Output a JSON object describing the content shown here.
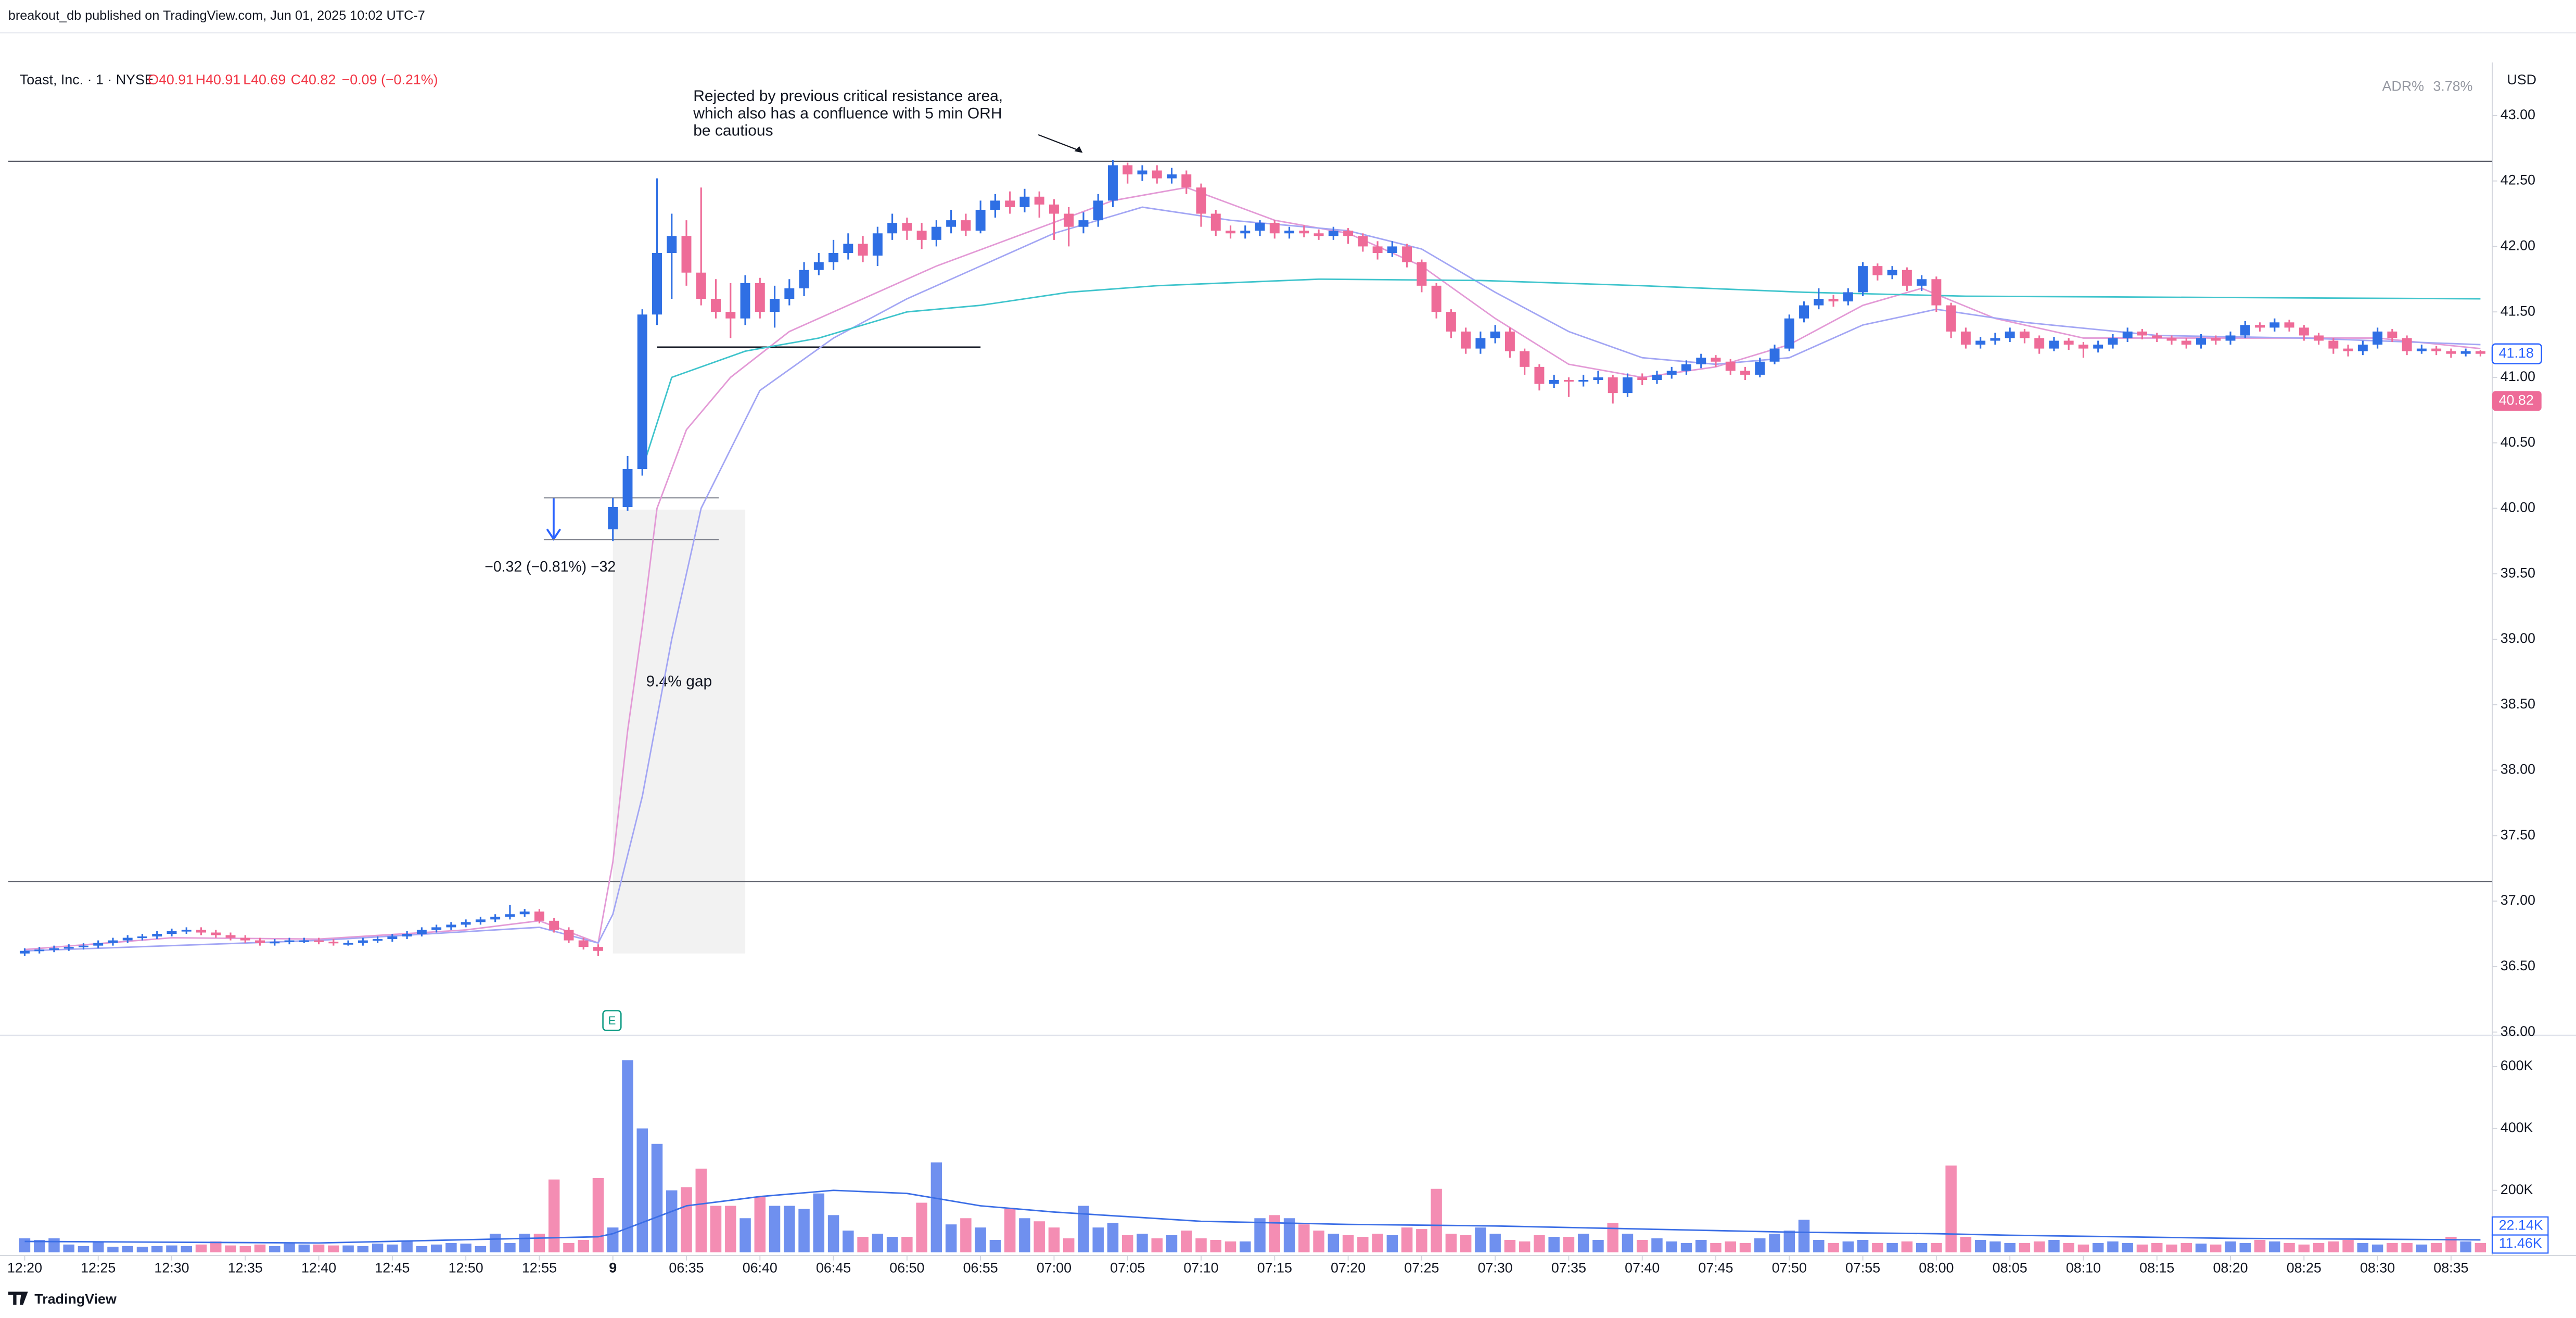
{
  "chart_data": {
    "type": "candlestick",
    "publisher": "breakout_db published on TradingView.com, Jun 01, 2025 10:02 UTC-7",
    "title": "Toast, Inc. · 1 · NYSE",
    "legend_values": [
      {
        "value": 40.91,
        "label": "O40.91"
      },
      {
        "value": 40.91,
        "label": "H40.91"
      },
      {
        "value": 40.69,
        "label": "L40.69"
      },
      {
        "value": 40.82,
        "label": "C40.82"
      }
    ],
    "change": {
      "value": -0.09,
      "label": "−0.09 (−0.21%)"
    },
    "adr_label": "ADR%",
    "adr": {
      "value": 3.78,
      "label": "3.78%"
    },
    "currency": "USD",
    "brand": "TradingView",
    "annotation_lines": [
      "Rejected by previous critical resistance area,",
      "which also has a confluence with 5 min ORH",
      "be cautious"
    ],
    "gap_label": "9.4% gap",
    "measure_label": "−0.32 (−0.81%) −32",
    "earnings_marker": "E",
    "up_color": "#2f6fe4",
    "down_color": "#ee6b98",
    "vol_up_color": "#6f90ef",
    "vol_down_color": "#f48db3",
    "xlim": [
      -1.12,
      167.8
    ],
    "ylim": [
      36,
      43.38
    ],
    "yticks": [
      {
        "value": 36,
        "label": "36.00"
      },
      {
        "value": 36.5,
        "label": "36.50"
      },
      {
        "value": 37,
        "label": "37.00"
      },
      {
        "value": 37.5,
        "label": "37.50"
      },
      {
        "value": 38,
        "label": "38.00"
      },
      {
        "value": 38.5,
        "label": "38.50"
      },
      {
        "value": 39,
        "label": "39.00"
      },
      {
        "value": 39.5,
        "label": "39.50"
      },
      {
        "value": 40,
        "label": "40.00"
      },
      {
        "value": 40.5,
        "label": "40.50"
      },
      {
        "value": 41,
        "label": "41.00"
      },
      {
        "value": 41.5,
        "label": "41.50"
      },
      {
        "value": 42,
        "label": "42.00"
      },
      {
        "value": 42.5,
        "label": "42.50"
      },
      {
        "value": 43,
        "label": "43.00"
      }
    ],
    "vlim": [
      0,
      690000
    ],
    "vticks": [
      {
        "value": 200000,
        "label": "200K"
      },
      {
        "value": 400000,
        "label": "400K"
      },
      {
        "value": 600000,
        "label": "600K"
      }
    ],
    "xticks": [
      {
        "value": 0,
        "label": "12:20"
      },
      {
        "value": 5,
        "label": "12:25"
      },
      {
        "value": 10,
        "label": "12:30"
      },
      {
        "value": 15,
        "label": "12:35"
      },
      {
        "value": 20,
        "label": "12:40"
      },
      {
        "value": 25,
        "label": "12:45"
      },
      {
        "value": 30,
        "label": "12:50"
      },
      {
        "value": 35,
        "label": "12:55"
      },
      {
        "value": 40,
        "label": "9"
      },
      {
        "value": 45,
        "label": "06:35"
      },
      {
        "value": 50,
        "label": "06:40"
      },
      {
        "value": 55,
        "label": "06:45"
      },
      {
        "value": 60,
        "label": "06:50"
      },
      {
        "value": 65,
        "label": "06:55"
      },
      {
        "value": 70,
        "label": "07:00"
      },
      {
        "value": 75,
        "label": "07:05"
      },
      {
        "value": 80,
        "label": "07:10"
      },
      {
        "value": 85,
        "label": "07:15"
      },
      {
        "value": 90,
        "label": "07:20"
      },
      {
        "value": 95,
        "label": "07:25"
      },
      {
        "value": 100,
        "label": "07:30"
      },
      {
        "value": 105,
        "label": "07:35"
      },
      {
        "value": 110,
        "label": "07:40"
      },
      {
        "value": 115,
        "label": "07:45"
      },
      {
        "value": 120,
        "label": "07:50"
      },
      {
        "value": 125,
        "label": "07:55"
      },
      {
        "value": 130,
        "label": "08:00"
      },
      {
        "value": 135,
        "label": "08:05"
      },
      {
        "value": 140,
        "label": "08:10"
      },
      {
        "value": 145,
        "label": "08:15"
      },
      {
        "value": 150,
        "label": "08:20"
      },
      {
        "value": 155,
        "label": "08:25"
      },
      {
        "value": 160,
        "label": "08:30"
      },
      {
        "value": 165,
        "label": "08:35"
      }
    ],
    "open": [
      36.6,
      36.62,
      36.63,
      36.64,
      36.65,
      36.66,
      36.68,
      36.7,
      36.72,
      36.73,
      36.75,
      36.77,
      36.78,
      36.76,
      36.74,
      36.72,
      36.7,
      36.68,
      36.69,
      36.7,
      36.7,
      36.69,
      36.68,
      36.68,
      36.7,
      36.71,
      36.73,
      36.75,
      36.78,
      36.8,
      36.82,
      36.84,
      36.86,
      36.88,
      36.9,
      36.92,
      36.85,
      36.78,
      36.7,
      36.65,
      39.84,
      40.01,
      40.3,
      41.48,
      41.95,
      42.08,
      41.8,
      41.6,
      41.5,
      41.45,
      41.72,
      41.5,
      41.6,
      41.68,
      41.82,
      41.88,
      41.95,
      42.02,
      41.93,
      42.1,
      42.18,
      42.12,
      42.05,
      42.15,
      42.2,
      42.12,
      42.28,
      42.35,
      42.3,
      42.38,
      42.32,
      42.25,
      42.15,
      42.2,
      42.35,
      42.62,
      42.55,
      42.58,
      42.52,
      42.55,
      42.45,
      42.25,
      42.12,
      42.1,
      42.12,
      42.18,
      42.1,
      42.12,
      42.1,
      42.08,
      42.12,
      42.08,
      42.0,
      41.95,
      42.0,
      41.88,
      41.7,
      41.5,
      41.35,
      41.22,
      41.3,
      41.35,
      41.2,
      41.08,
      40.95,
      40.98,
      40.97,
      40.98,
      41.0,
      40.88,
      41.0,
      40.98,
      41.02,
      41.05,
      41.1,
      41.15,
      41.12,
      41.05,
      41.02,
      41.12,
      41.22,
      41.45,
      41.55,
      41.6,
      41.58,
      41.65,
      41.85,
      41.78,
      41.82,
      41.7,
      41.75,
      41.55,
      41.35,
      41.25,
      41.28,
      41.3,
      41.35,
      41.3,
      41.22,
      41.28,
      41.25,
      41.22,
      41.25,
      41.3,
      41.35,
      41.32,
      41.3,
      41.28,
      41.25,
      41.3,
      41.28,
      41.32,
      41.4,
      41.38,
      41.42,
      41.38,
      41.32,
      41.28,
      41.22,
      41.2,
      41.25,
      41.35,
      41.3,
      41.2,
      41.22,
      41.2,
      41.18,
      41.2
    ],
    "high": [
      36.64,
      36.65,
      36.66,
      36.67,
      36.68,
      36.7,
      36.72,
      36.74,
      36.75,
      36.77,
      36.79,
      36.8,
      36.8,
      36.78,
      36.76,
      36.74,
      36.72,
      36.71,
      36.72,
      36.72,
      36.72,
      36.71,
      36.7,
      36.72,
      36.73,
      36.75,
      36.77,
      36.8,
      36.82,
      36.84,
      36.86,
      36.88,
      36.9,
      36.97,
      36.94,
      36.94,
      36.87,
      36.8,
      36.72,
      36.67,
      40.08,
      40.4,
      41.52,
      42.52,
      42.25,
      42.2,
      42.45,
      41.75,
      41.72,
      41.78,
      41.76,
      41.7,
      41.75,
      41.88,
      41.95,
      42.05,
      42.1,
      42.08,
      42.15,
      42.25,
      42.22,
      42.18,
      42.2,
      42.28,
      42.25,
      42.35,
      42.4,
      42.42,
      42.44,
      42.42,
      42.36,
      42.3,
      42.26,
      42.4,
      42.66,
      42.64,
      42.62,
      42.62,
      42.6,
      42.58,
      42.48,
      42.28,
      42.16,
      42.16,
      42.2,
      42.2,
      42.15,
      42.16,
      42.13,
      42.15,
      42.14,
      42.1,
      42.04,
      42.04,
      42.02,
      41.9,
      41.72,
      41.52,
      41.38,
      41.35,
      41.4,
      41.38,
      41.22,
      41.1,
      41.02,
      41.0,
      41.02,
      41.05,
      41.02,
      41.03,
      41.03,
      41.05,
      41.08,
      41.13,
      41.18,
      41.17,
      41.14,
      41.08,
      41.15,
      41.25,
      41.48,
      41.58,
      41.68,
      41.63,
      41.68,
      41.88,
      41.87,
      41.85,
      41.84,
      41.78,
      41.77,
      41.57,
      41.38,
      41.31,
      41.34,
      41.38,
      41.37,
      41.32,
      41.31,
      41.3,
      41.27,
      41.28,
      41.33,
      41.38,
      41.37,
      41.34,
      41.32,
      41.3,
      41.33,
      41.32,
      41.35,
      41.43,
      41.42,
      41.45,
      41.44,
      41.4,
      41.34,
      41.3,
      41.25,
      41.28,
      41.38,
      41.37,
      41.32,
      41.25,
      41.24,
      41.22,
      41.22,
      41.21
    ],
    "low": [
      36.58,
      36.6,
      36.61,
      36.62,
      36.63,
      36.64,
      36.66,
      36.68,
      36.7,
      36.71,
      36.73,
      36.75,
      36.74,
      36.72,
      36.7,
      36.68,
      36.66,
      36.66,
      36.67,
      36.68,
      36.67,
      36.66,
      36.66,
      36.66,
      36.68,
      36.69,
      36.71,
      36.73,
      36.76,
      36.78,
      36.8,
      36.82,
      36.84,
      36.86,
      36.88,
      36.83,
      36.76,
      36.68,
      36.63,
      36.58,
      39.75,
      39.98,
      40.25,
      41.4,
      41.6,
      41.7,
      41.55,
      41.45,
      41.3,
      41.4,
      41.45,
      41.38,
      41.55,
      41.62,
      41.78,
      41.82,
      41.9,
      41.88,
      41.85,
      42.05,
      42.05,
      41.98,
      42.0,
      42.1,
      42.08,
      42.1,
      42.22,
      42.25,
      42.26,
      42.22,
      42.05,
      42.0,
      42.1,
      42.15,
      42.3,
      42.48,
      42.5,
      42.48,
      42.48,
      42.4,
      42.15,
      42.08,
      42.06,
      42.06,
      42.08,
      42.06,
      42.06,
      42.07,
      42.05,
      42.05,
      42.02,
      41.96,
      41.9,
      41.92,
      41.84,
      41.65,
      41.45,
      41.3,
      41.18,
      41.18,
      41.26,
      41.15,
      41.02,
      40.9,
      40.92,
      40.85,
      40.93,
      40.95,
      40.8,
      40.85,
      40.94,
      40.95,
      40.99,
      41.02,
      41.07,
      41.08,
      41.02,
      40.98,
      41.0,
      41.1,
      41.2,
      41.42,
      41.52,
      41.54,
      41.55,
      41.62,
      41.74,
      41.75,
      41.66,
      41.66,
      41.5,
      41.3,
      41.22,
      41.22,
      41.25,
      41.27,
      41.26,
      41.18,
      41.2,
      41.21,
      41.15,
      41.19,
      41.22,
      41.27,
      41.29,
      41.27,
      41.25,
      41.22,
      41.22,
      41.25,
      41.25,
      41.3,
      41.35,
      41.35,
      41.35,
      41.28,
      41.25,
      41.18,
      41.16,
      41.17,
      41.22,
      41.27,
      41.17,
      41.18,
      41.17,
      41.15,
      41.16,
      41.16
    ],
    "close": [
      36.62,
      36.63,
      36.64,
      36.65,
      36.66,
      36.68,
      36.7,
      36.72,
      36.73,
      36.75,
      36.77,
      36.78,
      36.76,
      36.74,
      36.72,
      36.7,
      36.68,
      36.69,
      36.7,
      36.7,
      36.69,
      36.68,
      36.68,
      36.7,
      36.71,
      36.73,
      36.75,
      36.78,
      36.8,
      36.82,
      36.84,
      36.86,
      36.88,
      36.9,
      36.92,
      36.85,
      36.78,
      36.7,
      36.65,
      36.62,
      40.01,
      40.3,
      41.48,
      41.95,
      42.08,
      41.8,
      41.6,
      41.5,
      41.45,
      41.72,
      41.5,
      41.6,
      41.68,
      41.82,
      41.88,
      41.95,
      42.02,
      41.93,
      42.1,
      42.18,
      42.12,
      42.05,
      42.15,
      42.2,
      42.12,
      42.28,
      42.35,
      42.3,
      42.38,
      42.32,
      42.25,
      42.15,
      42.2,
      42.35,
      42.62,
      42.55,
      42.58,
      42.52,
      42.55,
      42.45,
      42.25,
      42.12,
      42.1,
      42.12,
      42.18,
      42.1,
      42.12,
      42.1,
      42.08,
      42.12,
      42.08,
      42.0,
      41.95,
      42.0,
      41.88,
      41.7,
      41.5,
      41.35,
      41.22,
      41.3,
      41.35,
      41.2,
      41.08,
      40.95,
      40.98,
      40.97,
      40.98,
      41.0,
      40.88,
      41.0,
      40.98,
      41.02,
      41.05,
      41.1,
      41.15,
      41.12,
      41.05,
      41.02,
      41.12,
      41.22,
      41.45,
      41.55,
      41.6,
      41.58,
      41.65,
      41.85,
      41.78,
      41.82,
      41.7,
      41.75,
      41.55,
      41.35,
      41.25,
      41.28,
      41.3,
      41.35,
      41.3,
      41.22,
      41.28,
      41.25,
      41.22,
      41.25,
      41.3,
      41.35,
      41.32,
      41.3,
      41.28,
      41.25,
      41.3,
      41.28,
      41.32,
      41.4,
      41.38,
      41.42,
      41.38,
      41.32,
      41.28,
      41.22,
      41.2,
      41.25,
      41.35,
      41.3,
      41.2,
      41.22,
      41.2,
      41.18,
      41.2,
      41.18
    ],
    "volume": [
      45000,
      40000,
      45000,
      25000,
      20000,
      35000,
      18000,
      20000,
      18000,
      20000,
      22000,
      20000,
      25000,
      35000,
      22000,
      20000,
      25000,
      20000,
      28000,
      25000,
      25000,
      22000,
      22000,
      20000,
      28000,
      25000,
      35000,
      20000,
      25000,
      30000,
      28000,
      20000,
      60000,
      30000,
      60000,
      60000,
      235000,
      30000,
      40000,
      240000,
      80000,
      620000,
      400000,
      350000,
      200000,
      210000,
      270000,
      150000,
      150000,
      110000,
      180000,
      150000,
      150000,
      140000,
      190000,
      120000,
      70000,
      50000,
      60000,
      50000,
      50000,
      160000,
      290000,
      90000,
      110000,
      80000,
      40000,
      140000,
      110000,
      100000,
      80000,
      45000,
      150000,
      80000,
      95000,
      55000,
      60000,
      45000,
      55000,
      70000,
      45000,
      40000,
      35000,
      35000,
      110000,
      120000,
      110000,
      90000,
      70000,
      60000,
      55000,
      50000,
      60000,
      55000,
      80000,
      75000,
      205000,
      60000,
      55000,
      80000,
      60000,
      40000,
      35000,
      55000,
      50000,
      50000,
      60000,
      40000,
      95000,
      60000,
      40000,
      45000,
      35000,
      30000,
      40000,
      30000,
      35000,
      30000,
      45000,
      60000,
      70000,
      105000,
      40000,
      30000,
      35000,
      40000,
      30000,
      30000,
      35000,
      30000,
      30000,
      280000,
      50000,
      40000,
      35000,
      30000,
      30000,
      35000,
      40000,
      30000,
      25000,
      30000,
      35000,
      30000,
      25000,
      30000,
      25000,
      30000,
      28000,
      25000,
      35000,
      30000,
      40000,
      35000,
      30000,
      25000,
      30000,
      35000,
      40000,
      30000,
      25000,
      30000,
      30000,
      25000,
      30000,
      50000,
      35000,
      30000
    ],
    "overlays": [
      {
        "color": "#e39ad6",
        "x": [
          0,
          10,
          20,
          30,
          35,
          39,
          40,
          41,
          42,
          43,
          45,
          48,
          52,
          57,
          62,
          68,
          74,
          79,
          85,
          90,
          95,
          100,
          105,
          110,
          115,
          120,
          125,
          129,
          134,
          140,
          150,
          160,
          167
        ],
        "values": [
          36.63,
          36.72,
          36.71,
          36.78,
          36.85,
          36.68,
          37.3,
          38.3,
          39.1,
          40.0,
          40.6,
          41.0,
          41.35,
          41.6,
          41.85,
          42.1,
          42.35,
          42.45,
          42.2,
          42.1,
          41.85,
          41.45,
          41.1,
          41.0,
          41.08,
          41.25,
          41.55,
          41.68,
          41.45,
          41.3,
          41.3,
          41.3,
          41.22
        ]
      },
      {
        "color": "#a3a6f4",
        "x": [
          0,
          20,
          35,
          39,
          40,
          42,
          44,
          46,
          50,
          55,
          60,
          65,
          70,
          76,
          82,
          90,
          95,
          100,
          105,
          110,
          115,
          120,
          125,
          130,
          136,
          145,
          155,
          167
        ],
        "values": [
          36.62,
          36.7,
          36.8,
          36.68,
          36.9,
          37.8,
          39.0,
          40.0,
          40.9,
          41.3,
          41.6,
          41.85,
          42.1,
          42.3,
          42.2,
          42.12,
          41.98,
          41.65,
          41.35,
          41.15,
          41.1,
          41.15,
          41.4,
          41.52,
          41.42,
          41.32,
          41.3,
          41.25
        ]
      },
      {
        "color": "#3fc4cc",
        "x": [
          42,
          44,
          49,
          54,
          60,
          65,
          71,
          77,
          88,
          99,
          110,
          121,
          132,
          167
        ],
        "values": [
          40.3,
          41.0,
          41.2,
          41.3,
          41.5,
          41.55,
          41.65,
          41.7,
          41.75,
          41.74,
          41.7,
          41.65,
          41.62,
          41.6
        ]
      }
    ],
    "volume_ma": {
      "color": "#3b6ee6",
      "x": [
        0,
        20,
        39,
        40,
        45,
        50,
        55,
        60,
        65,
        70,
        80,
        90,
        100,
        110,
        120,
        130,
        135,
        150,
        167
      ],
      "values": [
        35000,
        30000,
        50000,
        60000,
        150000,
        180000,
        200000,
        190000,
        150000,
        130000,
        100000,
        90000,
        85000,
        75000,
        65000,
        60000,
        55000,
        45000,
        40000
      ]
    },
    "levels": [
      42.65,
      37.15
    ],
    "segments": [
      {
        "price": 41.23,
        "x": [
          43,
          65
        ]
      },
      {
        "price": 40.08,
        "x": [
          35.3,
          47.2
        ]
      },
      {
        "price": 39.76,
        "x": [
          35.3,
          47.2
        ]
      }
    ],
    "gap_zone": {
      "x": [
        40,
        49
      ],
      "price": [
        36.6,
        39.99
      ]
    },
    "last_price_labels": [
      41.18,
      40.82
    ],
    "volume_labels": [
      {
        "value": 22140,
        "label": "22.14K"
      },
      {
        "value": 11460,
        "label": "11.46K"
      }
    ]
  }
}
